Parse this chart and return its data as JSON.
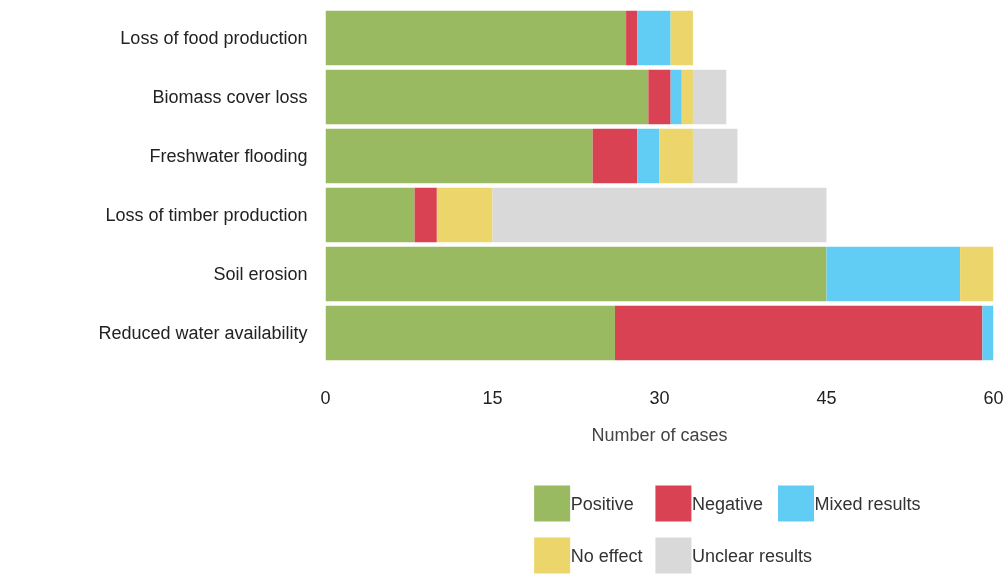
{
  "chart_data": {
    "type": "bar",
    "orientation": "horizontal",
    "stacked": true,
    "xlabel": "Number of cases",
    "categories": [
      "Loss of food production",
      "Biomass cover loss",
      "Freshwater flooding",
      "Loss of timber production",
      "Soil erosion",
      "Reduced water availability"
    ],
    "series": [
      {
        "name": "Positive",
        "color": "#9aba62",
        "values": [
          27,
          29,
          24,
          8,
          45,
          26
        ]
      },
      {
        "name": "Negative",
        "color": "#d84253",
        "values": [
          1,
          2,
          4,
          2,
          0,
          33
        ]
      },
      {
        "name": "Mixed results",
        "color": "#62cdf4",
        "values": [
          3,
          1,
          2,
          0,
          12,
          1
        ]
      },
      {
        "name": "No effect",
        "color": "#ecd56a",
        "values": [
          2,
          1,
          3,
          5,
          3,
          0
        ]
      },
      {
        "name": "Unclear results",
        "color": "#d9d9d9",
        "values": [
          0,
          3,
          4,
          30,
          0,
          0
        ]
      }
    ],
    "xlim": [
      0,
      60
    ],
    "xticks": [
      0,
      15,
      30,
      45,
      60
    ],
    "grid": false,
    "legend": "bottom"
  }
}
